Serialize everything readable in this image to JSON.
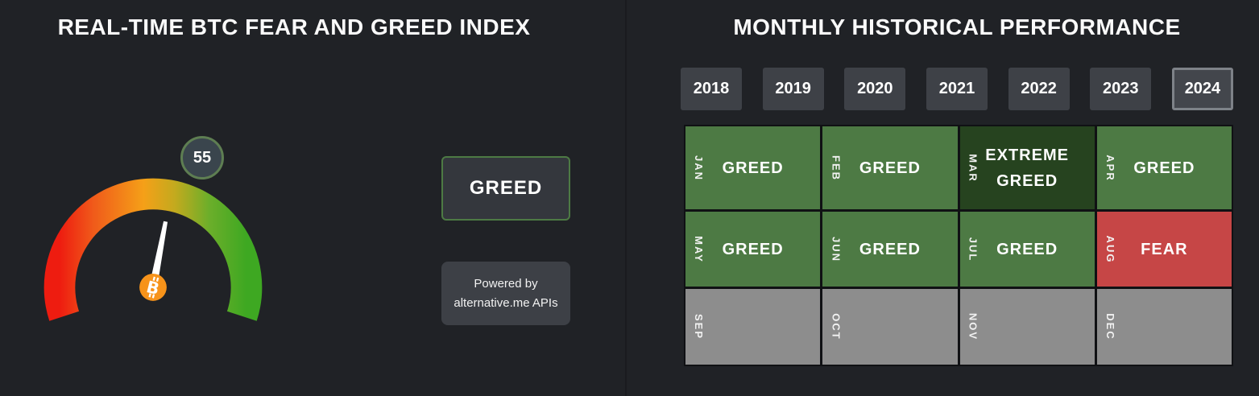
{
  "left_panel": {
    "title": "REAL-TIME BTC FEAR AND GREED INDEX",
    "gauge": {
      "value": 55,
      "min": 0,
      "max": 100,
      "classification": "GREED",
      "needle_color": "#ffffff",
      "arc_gradient": [
        "#ee1c10",
        "#f5a018",
        "#3ea822"
      ],
      "badge_background": "#3a454d",
      "badge_border": "#5e7e52"
    },
    "status_label": "GREED",
    "powered_by_line1": "Powered by",
    "powered_by_line2": "alternative.me APIs",
    "icons": {
      "bitcoin": "₿",
      "bitcoin_color": "#f7931a"
    }
  },
  "right_panel": {
    "title": "MONTHLY HISTORICAL PERFORMANCE",
    "years": [
      {
        "label": "2018",
        "selected": false
      },
      {
        "label": "2019",
        "selected": false
      },
      {
        "label": "2020",
        "selected": false
      },
      {
        "label": "2021",
        "selected": false
      },
      {
        "label": "2022",
        "selected": false
      },
      {
        "label": "2023",
        "selected": false
      },
      {
        "label": "2024",
        "selected": true
      }
    ],
    "months": [
      {
        "label": "JAN",
        "value": "GREED",
        "sentiment": "greed"
      },
      {
        "label": "FEB",
        "value": "GREED",
        "sentiment": "greed"
      },
      {
        "label": "MAR",
        "value": "EXTREME GREED",
        "sentiment": "extreme-greed"
      },
      {
        "label": "APR",
        "value": "GREED",
        "sentiment": "greed"
      },
      {
        "label": "MAY",
        "value": "GREED",
        "sentiment": "greed"
      },
      {
        "label": "JUN",
        "value": "GREED",
        "sentiment": "greed"
      },
      {
        "label": "JUL",
        "value": "GREED",
        "sentiment": "greed"
      },
      {
        "label": "AUG",
        "value": "FEAR",
        "sentiment": "fear"
      },
      {
        "label": "SEP",
        "value": "",
        "sentiment": "none"
      },
      {
        "label": "OCT",
        "value": "",
        "sentiment": "none"
      },
      {
        "label": "NOV",
        "value": "",
        "sentiment": "none"
      },
      {
        "label": "DEC",
        "value": "",
        "sentiment": "none"
      }
    ],
    "sentiment_colors": {
      "greed": "#4d7a44",
      "extreme-greed": "#26431f",
      "fear": "#c64646",
      "none": "#8d8d8d"
    }
  },
  "chart_data": {
    "type": "table",
    "title": "MONTHLY HISTORICAL PERFORMANCE",
    "selected_year": "2024",
    "categories": [
      "JAN",
      "FEB",
      "MAR",
      "APR",
      "MAY",
      "JUN",
      "JUL",
      "AUG",
      "SEP",
      "OCT",
      "NOV",
      "DEC"
    ],
    "values": [
      "GREED",
      "GREED",
      "EXTREME GREED",
      "GREED",
      "GREED",
      "GREED",
      "GREED",
      "FEAR",
      "",
      "",
      "",
      ""
    ],
    "gauge": {
      "type": "gauge",
      "title": "REAL-TIME BTC FEAR AND GREED INDEX",
      "value": 55,
      "range": [
        0,
        100
      ],
      "classification": "GREED"
    }
  }
}
